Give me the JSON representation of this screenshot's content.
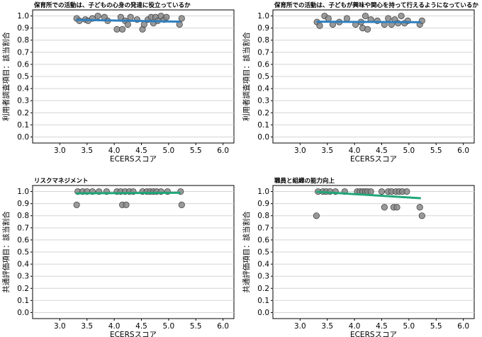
{
  "chart_data": [
    {
      "type": "scatter",
      "title": "保育所での活動は、子どもの心身の発達に役立っているか",
      "xlabel": "ECERSスコア",
      "ylabel": "利用者調査項目：該当割合",
      "xlim": [
        2.5,
        6.2
      ],
      "ylim": [
        -0.05,
        1.05
      ],
      "xticks": [
        "3.0",
        "3.5",
        "4.0",
        "4.5",
        "5.0",
        "5.5",
        "6.0"
      ],
      "yticks": [
        "0.0",
        "0.1",
        "0.2",
        "0.3",
        "0.4",
        "0.5",
        "0.6",
        "0.7",
        "0.8",
        "0.9",
        "1.0"
      ],
      "grid": true,
      "line_color": "#2f7fbf",
      "point_color": "#888888",
      "points": [
        {
          "x": 3.31,
          "y": 0.98
        },
        {
          "x": 3.36,
          "y": 0.96
        },
        {
          "x": 3.47,
          "y": 0.97
        },
        {
          "x": 3.52,
          "y": 0.96
        },
        {
          "x": 3.6,
          "y": 0.98
        },
        {
          "x": 3.7,
          "y": 1.0
        },
        {
          "x": 3.82,
          "y": 0.99
        },
        {
          "x": 3.88,
          "y": 0.96
        },
        {
          "x": 4.05,
          "y": 0.89
        },
        {
          "x": 4.12,
          "y": 0.99
        },
        {
          "x": 4.15,
          "y": 0.89
        },
        {
          "x": 4.2,
          "y": 0.96
        },
        {
          "x": 4.25,
          "y": 0.93
        },
        {
          "x": 4.3,
          "y": 0.99
        },
        {
          "x": 4.42,
          "y": 0.97
        },
        {
          "x": 4.52,
          "y": 0.89
        },
        {
          "x": 4.55,
          "y": 0.93
        },
        {
          "x": 4.62,
          "y": 0.97
        },
        {
          "x": 4.68,
          "y": 0.99
        },
        {
          "x": 4.72,
          "y": 0.94
        },
        {
          "x": 4.76,
          "y": 0.99
        },
        {
          "x": 4.8,
          "y": 0.96
        },
        {
          "x": 4.86,
          "y": 1.0
        },
        {
          "x": 4.92,
          "y": 0.97
        },
        {
          "x": 4.96,
          "y": 0.99
        },
        {
          "x": 5.2,
          "y": 0.93
        },
        {
          "x": 5.24,
          "y": 0.98
        }
      ],
      "fit": {
        "x": [
          3.3,
          5.22
        ],
        "y": [
          0.968,
          0.953
        ]
      }
    },
    {
      "type": "scatter",
      "title": "保育所での活動は、子どもが興味や関心を持って行えるようになっているか",
      "xlabel": "ECERSスコア",
      "ylabel": "利用者調査項目：該当割合",
      "xlim": [
        2.5,
        6.2
      ],
      "ylim": [
        -0.05,
        1.05
      ],
      "xticks": [
        "3.0",
        "3.5",
        "4.0",
        "4.5",
        "5.0",
        "5.5",
        "6.0"
      ],
      "yticks": [
        "0.0",
        "0.1",
        "0.2",
        "0.3",
        "0.4",
        "0.5",
        "0.6",
        "0.7",
        "0.8",
        "0.9",
        "1.0"
      ],
      "grid": true,
      "line_color": "#2f7fbf",
      "point_color": "#888888",
      "points": [
        {
          "x": 3.31,
          "y": 0.95
        },
        {
          "x": 3.36,
          "y": 0.92
        },
        {
          "x": 3.45,
          "y": 1.0
        },
        {
          "x": 3.52,
          "y": 0.98
        },
        {
          "x": 3.6,
          "y": 0.93
        },
        {
          "x": 3.72,
          "y": 0.95
        },
        {
          "x": 3.86,
          "y": 0.98
        },
        {
          "x": 4.02,
          "y": 0.93
        },
        {
          "x": 4.12,
          "y": 0.95
        },
        {
          "x": 4.15,
          "y": 0.9
        },
        {
          "x": 4.2,
          "y": 1.0
        },
        {
          "x": 4.24,
          "y": 0.89
        },
        {
          "x": 4.3,
          "y": 0.97
        },
        {
          "x": 4.42,
          "y": 0.96
        },
        {
          "x": 4.55,
          "y": 0.93
        },
        {
          "x": 4.62,
          "y": 0.98
        },
        {
          "x": 4.68,
          "y": 0.93
        },
        {
          "x": 4.74,
          "y": 0.97
        },
        {
          "x": 4.8,
          "y": 0.94
        },
        {
          "x": 4.86,
          "y": 1.0
        },
        {
          "x": 4.92,
          "y": 0.94
        },
        {
          "x": 4.98,
          "y": 0.96
        },
        {
          "x": 5.2,
          "y": 0.93
        },
        {
          "x": 5.24,
          "y": 0.96
        }
      ],
      "fit": {
        "x": [
          3.3,
          5.22
        ],
        "y": [
          0.953,
          0.948
        ]
      }
    },
    {
      "type": "scatter",
      "title": "リスクマネジメント",
      "xlabel": "ECERSスコア",
      "ylabel": "共通評価項目：該当割合",
      "xlim": [
        2.5,
        6.2
      ],
      "ylim": [
        -0.05,
        1.05
      ],
      "xticks": [
        "3.0",
        "3.5",
        "4.0",
        "4.5",
        "5.0",
        "5.5",
        "6.0"
      ],
      "yticks": [
        "0.0",
        "0.1",
        "0.2",
        "0.3",
        "0.4",
        "0.5",
        "0.6",
        "0.7",
        "0.8",
        "0.9",
        "1.0"
      ],
      "grid": true,
      "line_color": "#1fa67a",
      "point_color": "#888888",
      "points": [
        {
          "x": 3.31,
          "y": 0.89
        },
        {
          "x": 3.33,
          "y": 1.0
        },
        {
          "x": 3.42,
          "y": 1.0
        },
        {
          "x": 3.5,
          "y": 1.0
        },
        {
          "x": 3.6,
          "y": 1.0
        },
        {
          "x": 3.72,
          "y": 1.0
        },
        {
          "x": 3.86,
          "y": 1.0
        },
        {
          "x": 4.05,
          "y": 1.0
        },
        {
          "x": 4.12,
          "y": 1.0
        },
        {
          "x": 4.15,
          "y": 0.89
        },
        {
          "x": 4.2,
          "y": 1.0
        },
        {
          "x": 4.22,
          "y": 0.89
        },
        {
          "x": 4.28,
          "y": 1.0
        },
        {
          "x": 4.35,
          "y": 1.0
        },
        {
          "x": 4.52,
          "y": 1.0
        },
        {
          "x": 4.6,
          "y": 1.0
        },
        {
          "x": 4.66,
          "y": 1.0
        },
        {
          "x": 4.72,
          "y": 1.0
        },
        {
          "x": 4.78,
          "y": 1.0
        },
        {
          "x": 4.86,
          "y": 1.0
        },
        {
          "x": 4.98,
          "y": 1.0
        },
        {
          "x": 5.22,
          "y": 1.0
        },
        {
          "x": 5.24,
          "y": 0.89
        }
      ],
      "fit": {
        "x": [
          3.3,
          5.22
        ],
        "y": [
          0.985,
          0.99
        ]
      }
    },
    {
      "type": "scatter",
      "title": "職員と組織の能力向上",
      "xlabel": "ECERSスコア",
      "ylabel": "共通評価項目：該当割合",
      "xlim": [
        2.5,
        6.2
      ],
      "ylim": [
        -0.05,
        1.05
      ],
      "xticks": [
        "3.0",
        "3.5",
        "4.0",
        "4.5",
        "5.0",
        "5.5",
        "6.0"
      ],
      "yticks": [
        "0.0",
        "0.1",
        "0.2",
        "0.3",
        "0.4",
        "0.5",
        "0.6",
        "0.7",
        "0.8",
        "0.9",
        "1.0"
      ],
      "grid": true,
      "line_color": "#1fa67a",
      "point_color": "#888888",
      "points": [
        {
          "x": 3.3,
          "y": 0.8
        },
        {
          "x": 3.33,
          "y": 1.0
        },
        {
          "x": 3.42,
          "y": 1.0
        },
        {
          "x": 3.48,
          "y": 1.0
        },
        {
          "x": 3.55,
          "y": 1.0
        },
        {
          "x": 3.65,
          "y": 1.0
        },
        {
          "x": 3.82,
          "y": 1.0
        },
        {
          "x": 4.05,
          "y": 1.0
        },
        {
          "x": 4.1,
          "y": 1.0
        },
        {
          "x": 4.15,
          "y": 1.0
        },
        {
          "x": 4.2,
          "y": 1.0
        },
        {
          "x": 4.24,
          "y": 1.0
        },
        {
          "x": 4.3,
          "y": 1.0
        },
        {
          "x": 4.5,
          "y": 1.0
        },
        {
          "x": 4.55,
          "y": 0.87
        },
        {
          "x": 4.62,
          "y": 1.0
        },
        {
          "x": 4.68,
          "y": 1.0
        },
        {
          "x": 4.72,
          "y": 0.87
        },
        {
          "x": 4.76,
          "y": 1.0
        },
        {
          "x": 4.78,
          "y": 0.87
        },
        {
          "x": 4.82,
          "y": 1.0
        },
        {
          "x": 4.88,
          "y": 1.0
        },
        {
          "x": 4.96,
          "y": 1.0
        },
        {
          "x": 5.2,
          "y": 0.87
        },
        {
          "x": 5.24,
          "y": 0.8
        }
      ],
      "fit": {
        "x": [
          3.3,
          5.22
        ],
        "y": [
          0.998,
          0.945
        ]
      }
    }
  ]
}
